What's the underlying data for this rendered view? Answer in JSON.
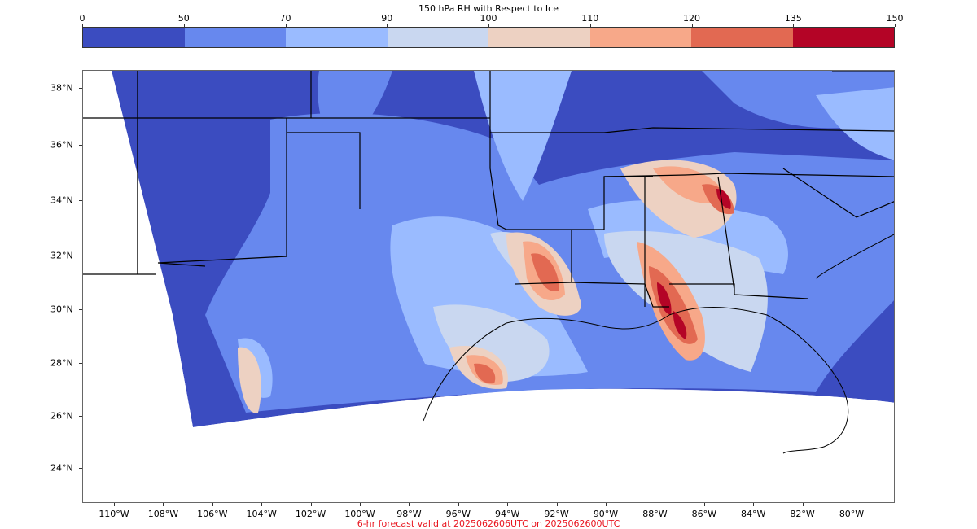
{
  "colorbar": {
    "title": "150 hPa RH with Respect to Ice",
    "ticks": [
      "0",
      "50",
      "70",
      "90",
      "100",
      "110",
      "120",
      "135",
      "150"
    ],
    "colors": [
      "#3b4cc0",
      "#6788ee",
      "#9abbff",
      "#c9d7f0",
      "#edd1c2",
      "#f7a889",
      "#e26952",
      "#b40426"
    ]
  },
  "map": {
    "lat_labels": [
      "38°N",
      "36°N",
      "34°N",
      "32°N",
      "30°N",
      "28°N",
      "26°N",
      "24°N"
    ],
    "lon_labels": [
      "110°W",
      "108°W",
      "106°W",
      "104°W",
      "102°W",
      "100°W",
      "98°W",
      "96°W",
      "94°W",
      "92°W",
      "90°W",
      "88°W",
      "86°W",
      "84°W",
      "82°W",
      "80°W"
    ],
    "fill_colors": {
      "low": "#3b4cc0",
      "mid": "#6788ee",
      "light": "#9abbff",
      "pale": "#c9d7f0",
      "peach": "#edd1c2",
      "salmon": "#f7a889",
      "red": "#e26952",
      "crimson": "#b40426"
    }
  },
  "footer": "6-hr forecast valid at 2025062606UTC on 2025062600UTC"
}
